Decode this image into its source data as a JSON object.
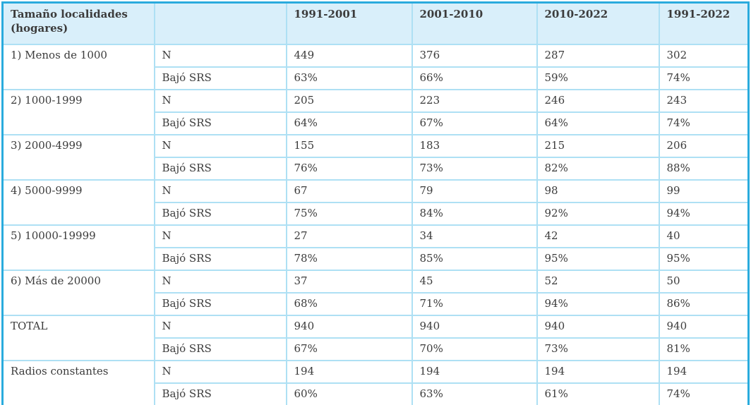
{
  "table": {
    "header": {
      "size_label": "Tamaño localidades (hogares)",
      "metric_label": "",
      "periods": [
        "1991-2001",
        "2001-2010",
        "2010-2022",
        "1991-2022"
      ]
    },
    "metrics": {
      "n": "N",
      "srs": "Bajó SRS"
    },
    "groups": [
      {
        "label": "1) Menos de 1000",
        "n": [
          "449",
          "376",
          "287",
          "302"
        ],
        "srs": [
          "63%",
          "66%",
          "59%",
          "74%"
        ]
      },
      {
        "label": "2) 1000-1999",
        "n": [
          "205",
          "223",
          "246",
          "243"
        ],
        "srs": [
          "64%",
          "67%",
          "64%",
          "74%"
        ]
      },
      {
        "label": "3) 2000-4999",
        "n": [
          "155",
          "183",
          "215",
          "206"
        ],
        "srs": [
          "76%",
          "73%",
          "82%",
          "88%"
        ]
      },
      {
        "label": "4) 5000-9999",
        "n": [
          "67",
          "79",
          "98",
          "99"
        ],
        "srs": [
          "75%",
          "84%",
          "92%",
          "94%"
        ]
      },
      {
        "label": "5) 10000-19999",
        "n": [
          "27",
          "34",
          "42",
          "40"
        ],
        "srs": [
          "78%",
          "85%",
          "95%",
          "95%"
        ]
      },
      {
        "label": "6) Más de 20000",
        "n": [
          "37",
          "45",
          "52",
          "50"
        ],
        "srs": [
          "68%",
          "71%",
          "94%",
          "86%"
        ]
      },
      {
        "label": "TOTAL",
        "n": [
          "940",
          "940",
          "940",
          "940"
        ],
        "srs": [
          "67%",
          "70%",
          "73%",
          "81%"
        ]
      },
      {
        "label": "Radios constantes",
        "n": [
          "194",
          "194",
          "194",
          "194"
        ],
        "srs": [
          "60%",
          "63%",
          "61%",
          "74%"
        ]
      }
    ],
    "colors": {
      "outer_border": "#2aabdd",
      "inner_border": "#aee0f4",
      "header_bg": "#d9effa",
      "text": "#3b3b3b"
    }
  }
}
